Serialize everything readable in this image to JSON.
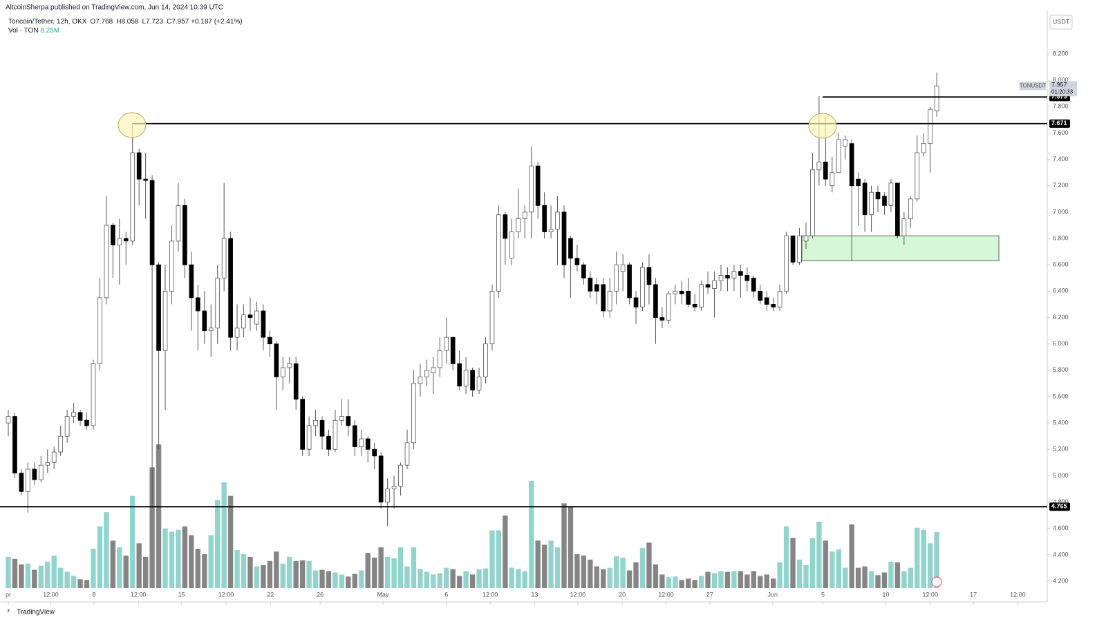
{
  "header": {
    "published_by": "AltcoinSherpa published on TradingView.com, Jun 14, 2024 10:39 UTC",
    "symbol": "Toncoin/Tether, 12h, OKX",
    "ohlc_legend": [
      {
        "label": "O",
        "value": 7.768
      },
      {
        "label": "H",
        "value": 8.058
      },
      {
        "label": "L",
        "value": 7.723
      },
      {
        "label": "C",
        "value": 7.957
      }
    ],
    "change": {
      "value": 0.187,
      "label": "+0.187"
    },
    "change_pct": {
      "value": 2.41,
      "label": "(+2.41%)"
    },
    "volume_label": "Vol · TON",
    "volume_last": {
      "value": 8.25,
      "label": "8.25M"
    }
  },
  "footer": {
    "brand": "TradingView"
  },
  "chart_data": {
    "type": "candlestick",
    "axis_unit": "USDT",
    "symbol_tag": "TONUSDT",
    "countdown": "01:20:33",
    "up_color": "#ffffff",
    "down_color": "#000000",
    "wick_color": "#555555",
    "volume_up_color": "#92d3cc",
    "volume_down_color": "#858585",
    "xlim": [
      -1.27,
      158.9
    ],
    "xticks": [
      {
        "value": 0,
        "label": "pr"
      },
      {
        "value": 6.5,
        "label": "12:00"
      },
      {
        "value": 13.1,
        "label": "8"
      },
      {
        "value": 19.9,
        "label": "12:00"
      },
      {
        "value": 26.5,
        "label": "15"
      },
      {
        "value": 33.3,
        "label": "12:00"
      },
      {
        "value": 40.1,
        "label": "22"
      },
      {
        "value": 47.7,
        "label": "26"
      },
      {
        "value": 57.3,
        "label": "May"
      },
      {
        "value": 67,
        "label": "6"
      },
      {
        "value": 73.7,
        "label": "12:00"
      },
      {
        "value": 80.5,
        "label": "13"
      },
      {
        "value": 87.1,
        "label": "12:00"
      },
      {
        "value": 93.9,
        "label": "20"
      },
      {
        "value": 100.6,
        "label": "12:00"
      },
      {
        "value": 107.3,
        "label": "27"
      },
      {
        "value": 116.9,
        "label": "Jun"
      },
      {
        "value": 124.6,
        "label": "5"
      },
      {
        "value": 134.2,
        "label": "10"
      },
      {
        "value": 141,
        "label": "12:00"
      },
      {
        "value": 147.6,
        "label": "17"
      },
      {
        "value": 154.4,
        "label": "12:00"
      }
    ],
    "ylim": [
      4.043,
      8.53
    ],
    "yticks": [
      {
        "value": 4.2,
        "label": "4.200"
      },
      {
        "value": 4.4,
        "label": "4.400"
      },
      {
        "value": 4.6,
        "label": "4.600"
      },
      {
        "value": 4.8,
        "label": "4.800"
      },
      {
        "value": 5.0,
        "label": "5.000"
      },
      {
        "value": 5.2,
        "label": "5.200"
      },
      {
        "value": 5.4,
        "label": "5.400"
      },
      {
        "value": 5.6,
        "label": "5.600"
      },
      {
        "value": 5.8,
        "label": "5.800"
      },
      {
        "value": 6.0,
        "label": "6.000"
      },
      {
        "value": 6.2,
        "label": "6.200"
      },
      {
        "value": 6.4,
        "label": "6.400"
      },
      {
        "value": 6.6,
        "label": "6.600"
      },
      {
        "value": 6.8,
        "label": "6.800"
      },
      {
        "value": 7.0,
        "label": "7.000"
      },
      {
        "value": 7.2,
        "label": "7.200"
      },
      {
        "value": 7.4,
        "label": "7.400"
      },
      {
        "value": 7.6,
        "label": "7.600"
      },
      {
        "value": 7.8,
        "label": "7.800"
      },
      {
        "value": 8.0,
        "label": "8.000"
      },
      {
        "value": 8.2,
        "label": "8.200"
      }
    ],
    "levels": [
      7.873,
      7.671,
      4.765
    ],
    "zone": [
      6.63,
      6.82
    ],
    "open": [
      5.4,
      5.45,
      5.02,
      4.88,
      5.05,
      4.97,
      5.08,
      5.1,
      5.18,
      5.3,
      5.45,
      5.48,
      5.42,
      5.38,
      5.85,
      6.35,
      6.9,
      6.75,
      6.8,
      6.78,
      7.45,
      7.25,
      7.24,
      6.6,
      5.95,
      6.4,
      6.78,
      7.05,
      6.6,
      6.35,
      6.25,
      6.1,
      6.12,
      6.5,
      6.8,
      6.05,
      6.12,
      6.22,
      6.15,
      6.25,
      6.05,
      6.0,
      5.75,
      5.82,
      5.85,
      5.58,
      5.2,
      5.38,
      5.42,
      5.3,
      5.2,
      5.42,
      5.45,
      5.38,
      5.22,
      5.28,
      5.2,
      5.15,
      4.8,
      4.9,
      4.92,
      5.08,
      5.25,
      5.7,
      5.75,
      5.78,
      5.82,
      5.95,
      6.05,
      5.85,
      5.68,
      5.8,
      5.65,
      5.75,
      6.0,
      6.4,
      6.98,
      6.65,
      6.85,
      6.95,
      7.0,
      7.35,
      7.05,
      6.85,
      6.87,
      7.0,
      6.8,
      6.65,
      6.6,
      6.5,
      6.45,
      6.45,
      6.25,
      6.4,
      6.55,
      6.6,
      6.35,
      6.28,
      6.58,
      6.45,
      6.2,
      6.18,
      6.38,
      6.4,
      6.4,
      6.3,
      6.28,
      6.45,
      6.42,
      6.48,
      6.52,
      6.5,
      6.55,
      6.52,
      6.5,
      6.4,
      6.35,
      6.3,
      6.28,
      6.4,
      6.82,
      6.62,
      6.78,
      6.82,
      7.32,
      7.38,
      7.2,
      7.3,
      7.5,
      7.52,
      7.25,
      7.22,
      6.98,
      7.15,
      7.12,
      7.05,
      7.22,
      6.82,
      6.95,
      7.1,
      7.45,
      7.52,
      7.768
    ],
    "high": [
      5.5,
      5.48,
      5.05,
      5.1,
      5.1,
      5.15,
      5.2,
      5.22,
      5.38,
      5.5,
      5.55,
      5.5,
      5.48,
      5.88,
      6.5,
      7.12,
      6.92,
      6.95,
      6.85,
      7.66,
      7.48,
      7.45,
      7.28,
      6.62,
      6.6,
      6.9,
      7.22,
      7.1,
      6.7,
      6.45,
      6.4,
      6.3,
      6.6,
      7.22,
      6.85,
      6.3,
      6.3,
      6.35,
      6.32,
      6.3,
      6.1,
      6.02,
      5.9,
      5.9,
      5.9,
      5.6,
      5.45,
      5.5,
      5.45,
      5.35,
      5.5,
      5.58,
      5.58,
      5.42,
      5.35,
      5.3,
      5.25,
      5.18,
      4.98,
      5.0,
      5.1,
      5.35,
      5.8,
      5.85,
      5.88,
      5.9,
      6.05,
      6.2,
      6.05,
      5.95,
      5.9,
      5.82,
      5.82,
      6.05,
      6.45,
      7.05,
      7.0,
      6.95,
      7.18,
      7.05,
      7.5,
      7.38,
      7.15,
      7.05,
      7.12,
      7.05,
      6.82,
      6.75,
      6.62,
      6.55,
      6.5,
      6.5,
      6.5,
      6.7,
      6.68,
      6.62,
      6.4,
      6.62,
      6.68,
      6.5,
      6.28,
      6.4,
      6.45,
      6.48,
      6.5,
      6.38,
      6.48,
      6.55,
      6.55,
      6.6,
      6.58,
      6.6,
      6.6,
      6.58,
      6.52,
      6.45,
      6.4,
      6.35,
      6.45,
      6.85,
      6.82,
      6.88,
      6.92,
      7.45,
      7.88,
      7.72,
      7.42,
      7.6,
      7.58,
      7.55,
      7.3,
      7.25,
      7.2,
      7.2,
      7.15,
      7.25,
      7.22,
      7.0,
      7.12,
      7.58,
      7.6,
      7.8,
      8.058
    ],
    "low": [
      5.3,
      4.98,
      4.85,
      4.72,
      4.93,
      4.95,
      5.02,
      5.05,
      5.15,
      5.25,
      5.4,
      5.38,
      5.35,
      5.35,
      5.8,
      6.3,
      6.5,
      6.45,
      6.6,
      6.75,
      7.05,
      6.95,
      4.76,
      5.2,
      5.5,
      6.3,
      6.7,
      6.5,
      6.1,
      5.95,
      6.0,
      5.9,
      6.0,
      6.4,
      5.95,
      5.95,
      6.05,
      6.1,
      6.1,
      5.95,
      5.9,
      5.5,
      5.65,
      5.7,
      5.5,
      5.15,
      5.15,
      5.3,
      5.2,
      5.15,
      5.18,
      5.38,
      5.3,
      5.15,
      5.15,
      5.1,
      5.05,
      4.75,
      4.62,
      4.75,
      4.85,
      5.05,
      5.2,
      5.6,
      5.68,
      5.62,
      5.75,
      5.85,
      5.8,
      5.65,
      5.62,
      5.6,
      5.62,
      5.7,
      5.95,
      6.35,
      6.6,
      6.6,
      6.8,
      6.8,
      6.8,
      6.95,
      6.8,
      6.8,
      6.6,
      6.5,
      6.35,
      6.55,
      6.45,
      6.35,
      6.3,
      6.2,
      6.2,
      6.3,
      6.4,
      6.3,
      6.15,
      6.25,
      6.3,
      6.0,
      6.12,
      6.15,
      6.3,
      6.3,
      6.28,
      6.25,
      6.25,
      6.38,
      6.2,
      6.4,
      6.4,
      6.4,
      6.35,
      6.4,
      6.35,
      6.3,
      6.25,
      6.25,
      6.25,
      6.38,
      6.6,
      6.6,
      6.72,
      6.8,
      7.2,
      7.2,
      7.15,
      7.3,
      7.4,
      6.63,
      6.9,
      6.85,
      6.85,
      7.0,
      6.98,
      7.0,
      6.8,
      6.75,
      6.88,
      7.08,
      7.42,
      7.3,
      7.723
    ],
    "close": [
      5.45,
      5.02,
      4.88,
      5.05,
      4.97,
      5.08,
      5.1,
      5.18,
      5.3,
      5.45,
      5.48,
      5.42,
      5.38,
      5.85,
      6.35,
      6.9,
      6.75,
      6.8,
      6.78,
      7.45,
      7.25,
      7.24,
      6.6,
      5.95,
      6.4,
      6.78,
      7.05,
      6.6,
      6.35,
      6.25,
      6.1,
      6.12,
      6.5,
      6.8,
      6.05,
      6.12,
      6.22,
      6.2,
      6.25,
      6.05,
      6.0,
      5.75,
      5.82,
      5.85,
      5.58,
      5.2,
      5.38,
      5.42,
      5.3,
      5.2,
      5.42,
      5.45,
      5.38,
      5.22,
      5.28,
      5.2,
      5.15,
      4.8,
      4.9,
      4.92,
      5.08,
      5.25,
      5.7,
      5.75,
      5.8,
      5.82,
      5.95,
      6.05,
      5.85,
      5.68,
      5.8,
      5.65,
      5.75,
      6.0,
      6.4,
      6.98,
      6.8,
      6.85,
      6.95,
      7.0,
      7.35,
      7.05,
      6.85,
      6.87,
      7.0,
      6.6,
      6.65,
      6.6,
      6.5,
      6.4,
      6.4,
      6.25,
      6.4,
      6.6,
      6.6,
      6.35,
      6.28,
      6.58,
      6.45,
      6.2,
      6.18,
      6.38,
      6.4,
      6.38,
      6.3,
      6.28,
      6.45,
      6.43,
      6.48,
      6.52,
      6.5,
      6.55,
      6.52,
      6.48,
      6.4,
      6.33,
      6.3,
      6.28,
      6.4,
      6.82,
      6.62,
      6.82,
      6.82,
      7.32,
      7.38,
      7.25,
      7.3,
      7.55,
      7.55,
      7.2,
      7.2,
      6.98,
      7.15,
      7.1,
      7.05,
      7.22,
      6.82,
      6.95,
      7.1,
      7.45,
      7.52,
      7.78,
      7.957
    ],
    "volume": [
      4.6,
      4.3,
      3.5,
      3.6,
      2.7,
      3.3,
      3.9,
      4.8,
      3.0,
      2.4,
      1.8,
      1.3,
      1.2,
      5.8,
      9.1,
      11.2,
      7.0,
      6.0,
      4.8,
      13.6,
      6.6,
      4.6,
      17.8,
      21.2,
      8.8,
      8.3,
      8.6,
      9.1,
      7.8,
      5.8,
      5.0,
      7.8,
      13.0,
      15.6,
      13.6,
      5.6,
      5.0,
      4.6,
      3.2,
      3.4,
      4.0,
      5.4,
      3.6,
      4.6,
      4.0,
      4.1,
      4.0,
      2.6,
      2.7,
      2.5,
      2.3,
      2.0,
      1.7,
      2.1,
      2.6,
      5.2,
      4.5,
      6.0,
      4.6,
      4.4,
      6.0,
      3.2,
      6.0,
      2.8,
      2.4,
      2.0,
      2.2,
      3.0,
      2.8,
      1.8,
      2.5,
      2.0,
      2.8,
      2.9,
      8.5,
      8.5,
      10.7,
      3.0,
      2.8,
      2.5,
      15.8,
      7.0,
      6.4,
      7.0,
      6.0,
      12.5,
      12.0,
      5.0,
      4.8,
      4.2,
      3.2,
      2.8,
      3.0,
      4.7,
      4.5,
      2.6,
      3.8,
      5.9,
      6.7,
      3.5,
      2.0,
      1.6,
      1.7,
      1.2,
      1.4,
      1.2,
      1.8,
      2.4,
      2.2,
      2.5,
      2.4,
      2.5,
      2.5,
      2.0,
      2.5,
      1.8,
      2.0,
      1.4,
      3.8,
      9.1,
      7.4,
      4.2,
      3.4,
      7.4,
      9.8,
      7.0,
      5.4,
      5.7,
      3.0,
      9.4,
      3.0,
      3.2,
      2.5,
      1.9,
      2.3,
      3.9,
      3.8,
      2.5,
      3.0,
      8.9,
      8.6,
      6.6,
      8.25
    ]
  }
}
